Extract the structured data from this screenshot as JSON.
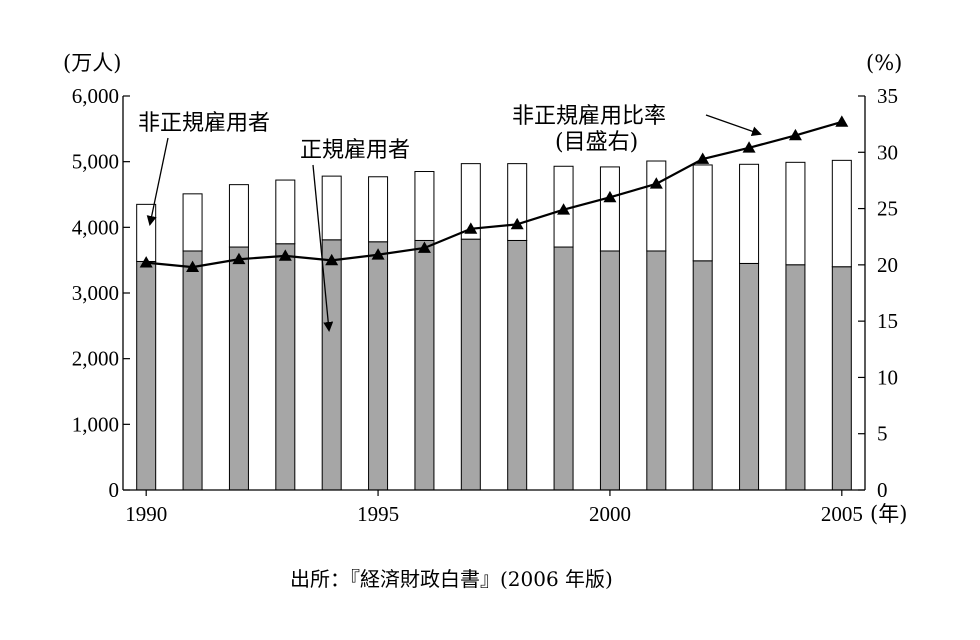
{
  "source": "出所：『経済財政白書』(2006 年版)",
  "chart_data": {
    "type": "bar",
    "x": [
      1990,
      1991,
      1992,
      1993,
      1994,
      1995,
      1996,
      1997,
      1998,
      1999,
      2000,
      2001,
      2002,
      2003,
      2004,
      2005
    ],
    "xticks": [
      "1990",
      "1995",
      "2000",
      "2005"
    ],
    "xunit": "(年)",
    "yleft": {
      "unit": "(万人)",
      "ylim": [
        0,
        6000
      ],
      "ticks": [
        "0",
        "1,000",
        "2,000",
        "3,000",
        "4,000",
        "5,000",
        "6,000"
      ]
    },
    "yright": {
      "unit": "(%)",
      "ylim": [
        0,
        35
      ],
      "ticks": [
        "0",
        "5",
        "10",
        "15",
        "20",
        "25",
        "30",
        "35"
      ]
    },
    "series": [
      {
        "name": "正規雇用者",
        "kind": "stacked-bar",
        "color": "#a6a6a6",
        "values": [
          3480,
          3640,
          3700,
          3750,
          3810,
          3780,
          3800,
          3820,
          3800,
          3700,
          3640,
          3640,
          3490,
          3450,
          3430,
          3400
        ]
      },
      {
        "name": "非正規雇用者",
        "kind": "stacked-bar",
        "color": "#ffffff",
        "values": [
          870,
          870,
          950,
          970,
          970,
          990,
          1050,
          1150,
          1170,
          1230,
          1280,
          1370,
          1460,
          1510,
          1560,
          1620
        ]
      },
      {
        "name": "非正規雇用比率",
        "kind": "line",
        "axis": "right",
        "marker": "triangle",
        "color": "#000000",
        "values": [
          20.2,
          19.8,
          20.5,
          20.8,
          20.4,
          20.9,
          21.5,
          23.2,
          23.6,
          24.9,
          26.0,
          27.2,
          29.4,
          30.4,
          31.5,
          32.7
        ]
      }
    ],
    "annotations": {
      "nonregular_label": "非正規雇用者",
      "regular_label": "正規雇用者",
      "ratio_label_line1": "非正規雇用比率",
      "ratio_label_line2": "(目盛右)"
    }
  }
}
